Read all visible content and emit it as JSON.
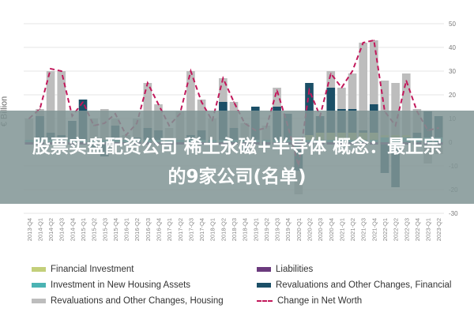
{
  "chart_data": {
    "type": "bar",
    "ylabel": "€ Billion",
    "ylim": [
      -30,
      50
    ],
    "yticks": [
      50,
      40,
      30,
      20,
      10,
      0,
      -10,
      -20,
      -30
    ],
    "grid": true,
    "legend_position": "bottom",
    "categories": [
      "2013-Q4",
      "2014-Q1",
      "2014-Q2",
      "2014-Q3",
      "2014-Q4",
      "2015-Q1",
      "2015-Q2",
      "2015-Q3",
      "2015-Q4",
      "2016-Q1",
      "2016-Q2",
      "2016-Q3",
      "2016-Q4",
      "2017-Q1",
      "2017-Q2",
      "2017-Q3",
      "2017-Q4",
      "2018-Q1",
      "2018-Q2",
      "2018-Q3",
      "2018-Q4",
      "2019-Q1",
      "2019-Q2",
      "2019-Q3",
      "2019-Q4",
      "2020-Q1",
      "2020-Q2",
      "2020-Q3",
      "2020-Q4",
      "2021-Q1",
      "2021-Q2",
      "2021-Q3",
      "2021-Q4",
      "2022-Q1",
      "2022-Q2",
      "2022-Q3",
      "2022-Q4",
      "2023-Q1",
      "2023-Q2"
    ],
    "series": [
      {
        "name": "Revaluations and Other Changes, Housing",
        "kind": "bar",
        "color": "#bdbdbd",
        "values": [
          10,
          14,
          30,
          30,
          5,
          4,
          10,
          14,
          10,
          3,
          10,
          25,
          16,
          6,
          13,
          30,
          18,
          10,
          27,
          17,
          8,
          3,
          7,
          23,
          4,
          -22,
          4,
          6,
          30,
          23,
          29,
          42,
          43,
          26,
          25,
          29,
          14,
          -9,
          -5
        ]
      },
      {
        "name": "Revaluations and Other Changes, Financial",
        "kind": "bar",
        "color": "#1b4f67",
        "values": [
          1,
          11,
          4,
          3,
          9,
          18,
          -2,
          -6,
          7,
          -1,
          2,
          6,
          5,
          -1,
          1,
          3,
          5,
          1,
          17,
          6,
          -4,
          15,
          -1,
          15,
          12,
          -12,
          25,
          11,
          23,
          14,
          14,
          5,
          16,
          -13,
          -19,
          2,
          4,
          13,
          11
        ]
      },
      {
        "name": "Financial Investment",
        "kind": "bar",
        "color": "#c3cf7a",
        "values": [
          1,
          1,
          1,
          1,
          1,
          1,
          1,
          1,
          1,
          1,
          1,
          1,
          1,
          1,
          1,
          1,
          1,
          1,
          1,
          1,
          1,
          1,
          1,
          1,
          1,
          2,
          3,
          4,
          4,
          4,
          4,
          4,
          4,
          3,
          3,
          3,
          2,
          1,
          1
        ]
      },
      {
        "name": "Investment in New Housing Assets",
        "kind": "bar",
        "color": "#4bb3b3",
        "values": [
          1,
          1,
          1,
          1,
          1,
          1,
          1,
          1,
          1,
          1,
          1,
          1,
          1,
          1,
          1,
          1,
          1,
          1,
          1,
          1,
          1,
          1,
          1,
          1,
          1,
          1,
          1,
          1,
          1,
          1,
          1,
          1,
          1,
          2,
          2,
          2,
          2,
          2,
          2
        ]
      },
      {
        "name": "Liabilities",
        "kind": "bar",
        "color": "#6b3a7d",
        "values": [
          -1,
          -1,
          -1,
          -1,
          -1,
          -1,
          -1,
          -1,
          -1,
          -1,
          -1,
          -1,
          -1,
          -1,
          -1,
          -1,
          -1,
          -1,
          -1,
          -1,
          -1,
          -1,
          -1,
          -1,
          -1,
          -1,
          -1,
          -1,
          -1,
          -1,
          -1,
          -1,
          -1,
          -1,
          -1,
          -1,
          -1,
          -1,
          -1
        ]
      },
      {
        "name": "Change in Net Worth",
        "kind": "line",
        "color": "#c2185b",
        "values": [
          10,
          14,
          31,
          30,
          11,
          17,
          7,
          8,
          12,
          3,
          8,
          25,
          16,
          7,
          12,
          30,
          17,
          9,
          27,
          17,
          8,
          5,
          6,
          22,
          7,
          -10,
          22,
          11,
          29,
          23,
          30,
          42,
          43,
          13,
          7,
          26,
          13,
          5,
          6
        ]
      }
    ]
  },
  "legend": [
    {
      "label": "Financial Investment",
      "color": "#c3cf7a"
    },
    {
      "label": "Liabilities",
      "color": "#6b3a7d"
    },
    {
      "label": "Investment in New Housing Assets",
      "color": "#4bb3b3"
    },
    {
      "label": "Revaluations and Other Changes, Financial",
      "color": "#1b4f67"
    },
    {
      "label": "Revaluations and Other Changes, Housing",
      "color": "#bdbdbd"
    },
    {
      "label": "Change in Net Worth",
      "color": "#c2185b"
    }
  ],
  "banner": {
    "line1": "股票实盘配资公司 稀土永磁+半导体 概念：最正宗",
    "line2": "的9家公司(名单)"
  }
}
